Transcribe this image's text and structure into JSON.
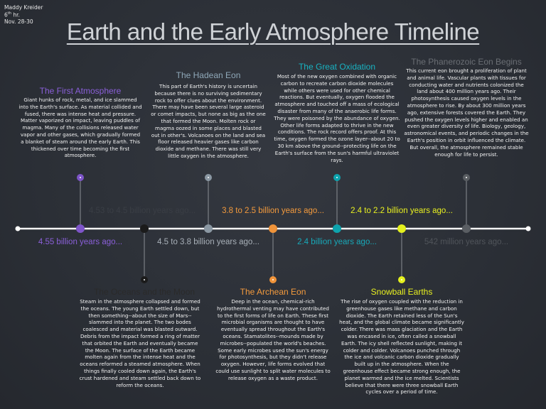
{
  "header": {
    "author": "Maddy Kreider",
    "period_number": "6",
    "period_suffix": "th",
    "period_rest": "hr.",
    "date": "Nov. 28-30"
  },
  "title": "Earth and the Early Atmosphere Timeline",
  "events": [
    {
      "title": "The First Atmosphere",
      "time": "4.55 billion years ago...",
      "text": "Giant hunks of rock, metal, and ice slammed into the Earth's surface. As material collided and fused, there was intense heat and pressure. Matter vaporized on impact, leaving puddles of magma. Many of the collisions released water vapor and other gases, which gradually formed a blanket of steam around the early Earth. This thickened over time becoming the first atmosphere."
    },
    {
      "title": "The Oceans and the Moon",
      "time": "4.53 to 4.5 billion years ago...",
      "text": "Steam in the atmosphere collapsed and formed the oceans. The young Earth settled down, but then something--about the size of Mars--slammed into the planet. The two bodes coalesced and material was blasted outward. Debris from the impact formed a ring of matter that orbited the Earth and eventually became the Moon. The surface of the Earth became molten again from the intense heat and the oceans reformed a steamed atmosphere. When things finally cooled down again, the Earth's crust hardened and steam settled back down to reform the oceans."
    },
    {
      "title": "The Hadean Eon",
      "time": "4.5 to 3.8 billion years ago...",
      "text": "This part of Earth's history is uncertain because there is no surviving sedimentary rock to offer clues about the environment. There may have been several large asteroid or comet impacts, but none as big as the one that formed the Moon. Molten rock or magma oozed in some places and blasted out in other's. Volcanoes on the land and sea floor released heavier gases like carbon dioxide and methane. There was still very little oxygen in the atmosphere."
    },
    {
      "title": "The Archean Eon",
      "time": "3.8 to 2.5 billion years ago...",
      "text": "Deep in the ocean, chemical-rich hydrothermal venting may have contributed to the first forms of life on Earth. These first microbial organisms are thought to have eventually spread throughout the Earth's oceans. Stamatolites--mounds made by microbes--populated the world's beaches. Some early microbes used the sun's energy for photosynthesis, but they didn't release oxygen. However, life forms evolved that could use sunlight to split water molecules to release oxygen as a waste product."
    },
    {
      "title": "The Great Oxidation",
      "time": "2.4 billion years ago...",
      "text": "Most of the new oxygen combined with organic carbon to recreate carbon dioxide molecules while others were used for other chemical reactions. But eventually, oxygen flooded the atmosphere and touched off a mass of ecological disaster from many of the anaerobic life forms. They were poisoned by the abundance of oxygen. Other life forms adapted to thrive in the new conditions. The rock record offers proof. At this time, oxygen formed the ozone layer--about 20 to 30 km above the ground--protecting life on the Earth's surface from the sun's harmful ultraviolet rays."
    },
    {
      "title": "Snowball Earths",
      "time": "2.4 to 2.2 billion years ago...",
      "text": "The rise of oxygen coupled with the reduction in greenhouse gases like methane and carbon dioxide. The Earth retained less of the Sun's heat, and the global climate became significantly colder. There was mass glaciation and the Earth was encased in ice, often called a snowball Earth. The icy shell reflected sunlight, making it colder and colder. Volcanoes punched through the ice and volcanic carbon dioxide gradually built up in the atmosphere. When the greenhouse effect became strong enough, the planet warmed and the ice melted. Scientists believe that there were three snowball Earth cycles over a period of time."
    },
    {
      "title": "The Phanerozoic Eon Begins",
      "time": "542 million years ago...",
      "text": "This current eon brought a proliferation of plant and animal life. Vascular plants with tissues for conducting water and nutrients colonized the land about 400 million years ago. Their photosynthesis caused oxygen levels in the atmosphere to rise. By about 300 million years ago, extensive forests covered the Earth. They pushed the oxygen levels higher and enabled an even greater diversity of life. Biology, geology, astronomical events, and periodic changes in the Earth's position in orbit influenced the climate. But overall, the atmosphere remained stable enough for life to persist."
    }
  ]
}
